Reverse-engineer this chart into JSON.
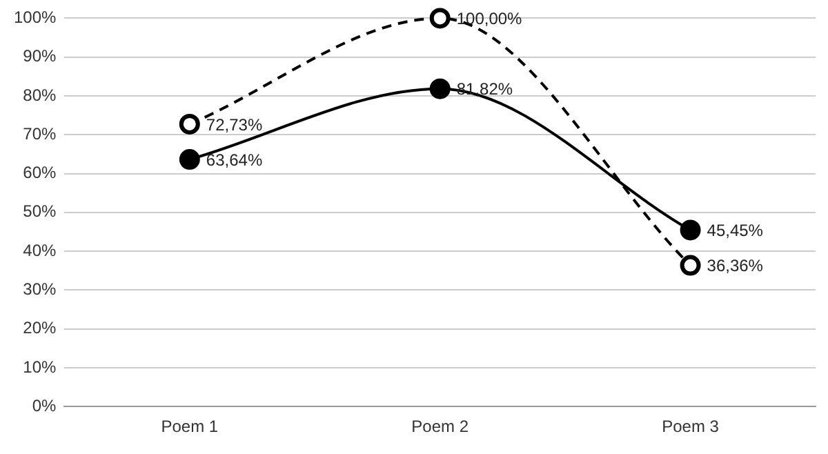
{
  "chart_data": {
    "type": "line",
    "categories": [
      "Poem 1",
      "Poem 2",
      "Poem 3"
    ],
    "series": [
      {
        "color": "#000000",
        "values": [
          63.64,
          81.82,
          45.45
        ],
        "value_labels": [
          "63,64%",
          "81,82%",
          "45,45%"
        ],
        "line_style": "solid"
      },
      {
        "color": "#000000",
        "values": [
          72.73,
          100,
          36.36
        ],
        "value_labels": [
          "72,73%",
          "100,00%",
          "36,36%"
        ],
        "line_style": "dashed"
      }
    ],
    "ylim": [
      0,
      100
    ],
    "yticks": [
      {
        "value": 0,
        "label": "0%"
      },
      {
        "value": 10,
        "label": "10%"
      },
      {
        "value": 20,
        "label": "20%"
      },
      {
        "value": 30,
        "label": "30%"
      },
      {
        "value": 40,
        "label": "40%"
      },
      {
        "value": 50,
        "label": "50%"
      },
      {
        "value": 60,
        "label": "60%"
      },
      {
        "value": 70,
        "label": "70%"
      },
      {
        "value": 80,
        "label": "80%"
      },
      {
        "value": 90,
        "label": "90%"
      },
      {
        "value": 100,
        "label": "100%"
      }
    ],
    "grid": "y",
    "marker": "circle",
    "legend": false
  }
}
